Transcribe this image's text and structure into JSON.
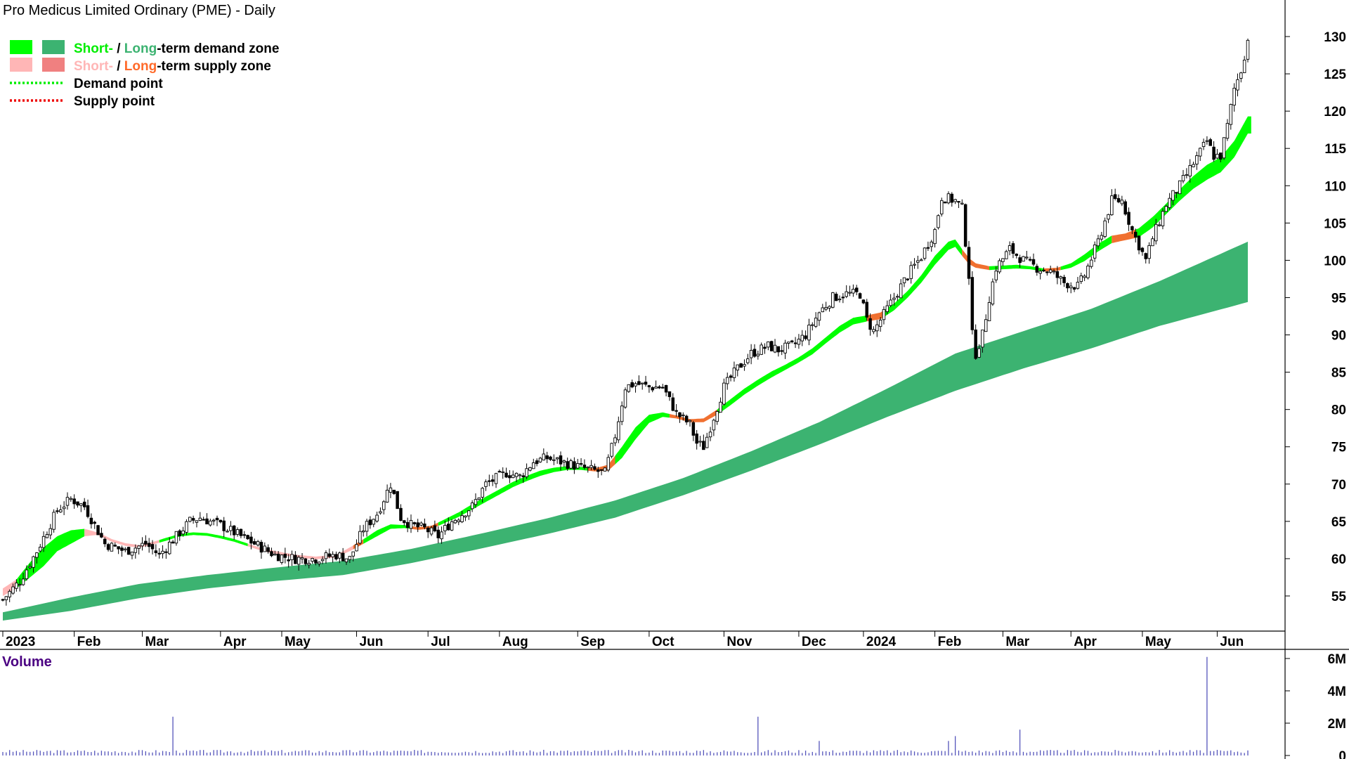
{
  "chart_data": {
    "type": "candlestick",
    "title": "Pro Medicus Limited Ordinary (PME) - Daily",
    "legend": {
      "placement": "top-left",
      "entries": [
        {
          "parts": [
            {
              "text": "Short-",
              "color": "#00ee00"
            },
            {
              "text": " / ",
              "color": "#000000"
            },
            {
              "text": "Long",
              "color": "#3cb371"
            },
            {
              "text": "-term demand zone",
              "color": "#000000"
            }
          ],
          "swatches": [
            "#00ff00",
            "#3cb371"
          ]
        },
        {
          "parts": [
            {
              "text": "Short-",
              "color": "#ffb6b6"
            },
            {
              "text": " / ",
              "color": "#000000"
            },
            {
              "text": "Long",
              "color": "#ff6a2a"
            },
            {
              "text": "-term supply zone",
              "color": "#000000"
            }
          ],
          "swatches": [
            "#ffb6b6",
            "#f08080"
          ]
        },
        {
          "parts": [
            {
              "text": "Demand point",
              "color": "#000000"
            }
          ],
          "dotted": "#00ee00"
        },
        {
          "parts": [
            {
              "text": "Supply point",
              "color": "#000000"
            }
          ],
          "dotted": "#ee0000"
        }
      ]
    },
    "y_axis": {
      "side": "right",
      "ticks": [
        55,
        60,
        65,
        70,
        75,
        80,
        85,
        90,
        95,
        100,
        105,
        110,
        115,
        120,
        125,
        130
      ],
      "range": [
        50,
        133
      ]
    },
    "x_axis": {
      "ticks": [
        {
          "label": "2023",
          "day": 0
        },
        {
          "label": "Feb",
          "day": 21
        },
        {
          "label": "Mar",
          "day": 41
        },
        {
          "label": "Apr",
          "day": 64
        },
        {
          "label": "May",
          "day": 82
        },
        {
          "label": "Jun",
          "day": 104
        },
        {
          "label": "Jul",
          "day": 125
        },
        {
          "label": "Aug",
          "day": 146
        },
        {
          "label": "Sep",
          "day": 169
        },
        {
          "label": "Oct",
          "day": 190
        },
        {
          "label": "Nov",
          "day": 212
        },
        {
          "label": "Dec",
          "day": 234
        },
        {
          "label": "2024",
          "day": 253
        },
        {
          "label": "Feb",
          "day": 274
        },
        {
          "label": "Mar",
          "day": 294
        },
        {
          "label": "Apr",
          "day": 314
        },
        {
          "label": "May",
          "day": 335
        },
        {
          "label": "Jun",
          "day": 357
        }
      ],
      "total_days": 362
    },
    "price_close_keypoints": [
      [
        0,
        54.5
      ],
      [
        5,
        57
      ],
      [
        10,
        61
      ],
      [
        16,
        66.5
      ],
      [
        20,
        68
      ],
      [
        24,
        67
      ],
      [
        30,
        62
      ],
      [
        36,
        61
      ],
      [
        42,
        62
      ],
      [
        46,
        60.5
      ],
      [
        50,
        62.5
      ],
      [
        55,
        65
      ],
      [
        58,
        65.5
      ],
      [
        64,
        64.5
      ],
      [
        70,
        63
      ],
      [
        76,
        61.5
      ],
      [
        80,
        60.5
      ],
      [
        86,
        60
      ],
      [
        92,
        60
      ],
      [
        98,
        60.5
      ],
      [
        102,
        60
      ],
      [
        106,
        64
      ],
      [
        110,
        66
      ],
      [
        114,
        70
      ],
      [
        117,
        65.5
      ],
      [
        120,
        64.5
      ],
      [
        124,
        64
      ],
      [
        128,
        63
      ],
      [
        132,
        65
      ],
      [
        138,
        67
      ],
      [
        142,
        70
      ],
      [
        148,
        71.5
      ],
      [
        152,
        71
      ],
      [
        156,
        73
      ],
      [
        160,
        73.5
      ],
      [
        164,
        73
      ],
      [
        168,
        72.5
      ],
      [
        172,
        72
      ],
      [
        177,
        71.5
      ],
      [
        180,
        76.5
      ],
      [
        183,
        83
      ],
      [
        186,
        83.5
      ],
      [
        190,
        83
      ],
      [
        194,
        83
      ],
      [
        198,
        79.5
      ],
      [
        202,
        78
      ],
      [
        204,
        75.5
      ],
      [
        206,
        75
      ],
      [
        209,
        79
      ],
      [
        212,
        83
      ],
      [
        216,
        85.5
      ],
      [
        220,
        87.5
      ],
      [
        225,
        88.5
      ],
      [
        228,
        88
      ],
      [
        232,
        88.5
      ],
      [
        236,
        90
      ],
      [
        240,
        93
      ],
      [
        244,
        95
      ],
      [
        248,
        95.5
      ],
      [
        252,
        95.5
      ],
      [
        254,
        92
      ],
      [
        256,
        90.5
      ],
      [
        258,
        92
      ],
      [
        262,
        95
      ],
      [
        266,
        98
      ],
      [
        270,
        100.5
      ],
      [
        274,
        104
      ],
      [
        276,
        108.5
      ],
      [
        280,
        108
      ],
      [
        282,
        107
      ],
      [
        284,
        98
      ],
      [
        285,
        90
      ],
      [
        286,
        87.5
      ],
      [
        288,
        90
      ],
      [
        290,
        95
      ],
      [
        292,
        99
      ],
      [
        296,
        101.5
      ],
      [
        300,
        100
      ],
      [
        304,
        99
      ],
      [
        308,
        98.5
      ],
      [
        312,
        97
      ],
      [
        316,
        96.5
      ],
      [
        318,
        98
      ],
      [
        322,
        102.5
      ],
      [
        326,
        108
      ],
      [
        329,
        108
      ],
      [
        332,
        104
      ],
      [
        336,
        100
      ],
      [
        338,
        103
      ],
      [
        342,
        107.5
      ],
      [
        346,
        110
      ],
      [
        350,
        113
      ],
      [
        354,
        116
      ],
      [
        356,
        114
      ],
      [
        358,
        114
      ],
      [
        360,
        118
      ],
      [
        362,
        123
      ],
      [
        364,
        125.5
      ],
      [
        366,
        129.5
      ]
    ],
    "short_term_zone_keypoints": [
      [
        0,
        56,
        55
      ],
      [
        4,
        57.2,
        56
      ],
      [
        8,
        59.5,
        57.5
      ],
      [
        12,
        61.5,
        59
      ],
      [
        16,
        63,
        61
      ],
      [
        20,
        63.8,
        62
      ],
      [
        24,
        64,
        63
      ],
      [
        28,
        63.5,
        63.2
      ],
      [
        32,
        62.6,
        62.3
      ],
      [
        36,
        62,
        61.8
      ],
      [
        40,
        61.7,
        61.6
      ],
      [
        44,
        62.2,
        61.9
      ],
      [
        48,
        62.8,
        62.4
      ],
      [
        52,
        63.3,
        63
      ],
      [
        56,
        63.5,
        63.2
      ],
      [
        60,
        63.4,
        63.1
      ],
      [
        64,
        63,
        62.8
      ],
      [
        68,
        62.6,
        62.3
      ],
      [
        72,
        62,
        61.7
      ],
      [
        76,
        61.4,
        61.1
      ],
      [
        80,
        61,
        60.7
      ],
      [
        86,
        60.5,
        60.2
      ],
      [
        92,
        60.2,
        60
      ],
      [
        98,
        60.5,
        60.2
      ],
      [
        102,
        61.5,
        61
      ],
      [
        106,
        62.6,
        62
      ],
      [
        110,
        63.8,
        63
      ],
      [
        114,
        64.6,
        64
      ],
      [
        118,
        64.5,
        64.1
      ],
      [
        122,
        64.2,
        63.9
      ],
      [
        126,
        64.4,
        64
      ],
      [
        130,
        65.3,
        64.8
      ],
      [
        134,
        66.2,
        65.6
      ],
      [
        138,
        67.3,
        66.6
      ],
      [
        142,
        68.3,
        67.6
      ],
      [
        146,
        69.3,
        68.6
      ],
      [
        150,
        70.3,
        69.6
      ],
      [
        154,
        71.1,
        70.4
      ],
      [
        158,
        71.8,
        71.1
      ],
      [
        162,
        72.2,
        71.6
      ],
      [
        166,
        72.4,
        71.9
      ],
      [
        170,
        72.3,
        71.9
      ],
      [
        174,
        72.1,
        71.7
      ],
      [
        178,
        72.6,
        71.8
      ],
      [
        182,
        75,
        73.5
      ],
      [
        186,
        77.6,
        76
      ],
      [
        190,
        79.3,
        78.2
      ],
      [
        194,
        79.6,
        79
      ],
      [
        198,
        79.2,
        78.8
      ],
      [
        202,
        78.7,
        78.3
      ],
      [
        206,
        78.8,
        78.3
      ],
      [
        210,
        80,
        79.3
      ],
      [
        214,
        81.4,
        80.6
      ],
      [
        218,
        82.8,
        82
      ],
      [
        222,
        84,
        83.2
      ],
      [
        226,
        85.1,
        84.3
      ],
      [
        230,
        86,
        85.3
      ],
      [
        234,
        87,
        86.3
      ],
      [
        238,
        88.2,
        87.4
      ],
      [
        242,
        89.7,
        88.9
      ],
      [
        246,
        91.2,
        90.3
      ],
      [
        250,
        92.3,
        91.4
      ],
      [
        254,
        92.6,
        91.8
      ],
      [
        258,
        93,
        92.1
      ],
      [
        262,
        94.2,
        93.3
      ],
      [
        266,
        95.9,
        95
      ],
      [
        270,
        98,
        97
      ],
      [
        274,
        100.6,
        99.4
      ],
      [
        278,
        102.5,
        101.4
      ],
      [
        280,
        102.8,
        101.8
      ],
      [
        282,
        101.5,
        100.6
      ],
      [
        284,
        100.3,
        99.5
      ],
      [
        286,
        99.6,
        99
      ],
      [
        290,
        99.2,
        98.7
      ],
      [
        294,
        99.3,
        98.8
      ],
      [
        298,
        99.4,
        98.9
      ],
      [
        302,
        99.2,
        98.8
      ],
      [
        306,
        98.9,
        98.5
      ],
      [
        310,
        99,
        98.6
      ],
      [
        314,
        99.6,
        99
      ],
      [
        318,
        100.8,
        99.9
      ],
      [
        322,
        102.2,
        101.2
      ],
      [
        326,
        103.3,
        102.3
      ],
      [
        330,
        103.6,
        102.7
      ],
      [
        334,
        104.3,
        103.1
      ],
      [
        338,
        105.8,
        104.4
      ],
      [
        342,
        107.6,
        106.2
      ],
      [
        346,
        109.5,
        108
      ],
      [
        350,
        111.3,
        109.6
      ],
      [
        354,
        112.8,
        110.8
      ],
      [
        358,
        113.8,
        111.8
      ],
      [
        362,
        116,
        113.8
      ],
      [
        366,
        119.3,
        117
      ]
    ],
    "long_term_zone_keypoints": [
      [
        0,
        52.8,
        51.7
      ],
      [
        20,
        54.8,
        53
      ],
      [
        40,
        56.6,
        54.7
      ],
      [
        60,
        57.8,
        56
      ],
      [
        80,
        58.8,
        57
      ],
      [
        100,
        59.7,
        57.8
      ],
      [
        120,
        61.3,
        59.4
      ],
      [
        140,
        63.3,
        61.3
      ],
      [
        160,
        65.4,
        63.3
      ],
      [
        180,
        67.8,
        65.5
      ],
      [
        200,
        70.8,
        68.5
      ],
      [
        220,
        74.4,
        71.8
      ],
      [
        240,
        78.3,
        75.3
      ],
      [
        260,
        82.8,
        79
      ],
      [
        280,
        87.5,
        82.5
      ],
      [
        300,
        90.5,
        85.5
      ],
      [
        320,
        93.5,
        88.2
      ],
      [
        340,
        97.2,
        91.2
      ],
      [
        366,
        102.5,
        94.4
      ]
    ],
    "short_zone_color_segments": [
      {
        "from": 0,
        "to": 4,
        "zone": "supply"
      },
      {
        "from": 4,
        "to": 24,
        "zone": "demand"
      },
      {
        "from": 24,
        "to": 46,
        "zone": "supply"
      },
      {
        "from": 46,
        "to": 72,
        "zone": "demand"
      },
      {
        "from": 72,
        "to": 103,
        "zone": "supply"
      },
      {
        "from": 103,
        "to": 106,
        "zone": "supply_long"
      },
      {
        "from": 106,
        "to": 120,
        "zone": "demand"
      },
      {
        "from": 120,
        "to": 128,
        "zone": "supply_long"
      },
      {
        "from": 128,
        "to": 172,
        "zone": "demand"
      },
      {
        "from": 172,
        "to": 180,
        "zone": "supply_long"
      },
      {
        "from": 180,
        "to": 196,
        "zone": "demand"
      },
      {
        "from": 196,
        "to": 210,
        "zone": "supply_long"
      },
      {
        "from": 210,
        "to": 254,
        "zone": "demand"
      },
      {
        "from": 254,
        "to": 259,
        "zone": "supply_long"
      },
      {
        "from": 259,
        "to": 282,
        "zone": "demand"
      },
      {
        "from": 282,
        "to": 290,
        "zone": "supply_long"
      },
      {
        "from": 290,
        "to": 306,
        "zone": "demand"
      },
      {
        "from": 306,
        "to": 311,
        "zone": "supply_long"
      },
      {
        "from": 311,
        "to": 326,
        "zone": "demand"
      },
      {
        "from": 326,
        "to": 333,
        "zone": "supply_long"
      },
      {
        "from": 333,
        "to": 367,
        "zone": "demand"
      }
    ],
    "volume": {
      "title": "Volume",
      "ticks": [
        "0",
        "2M",
        "4M",
        "6M"
      ],
      "tick_values": [
        0,
        2,
        4,
        6
      ],
      "base_level_millions": 0.25,
      "spikes": [
        [
          50,
          2.4
        ],
        [
          222,
          2.4
        ],
        [
          240,
          0.9
        ],
        [
          278,
          0.9
        ],
        [
          280,
          1.2
        ],
        [
          299,
          1.6
        ],
        [
          354,
          6.1
        ]
      ]
    },
    "colors": {
      "demand_short": "#00ff00",
      "demand_long": "#3cb371",
      "supply_short": "#ffb6b6",
      "supply_long": "#f07030",
      "candle": "#000000",
      "volume": "#5555bb",
      "volume_title": "#4b0082"
    }
  }
}
